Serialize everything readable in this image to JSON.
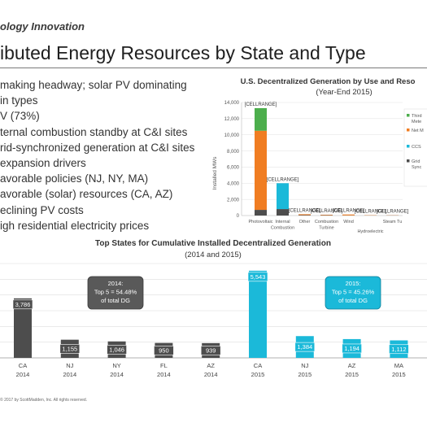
{
  "slide": {
    "kicker": "ology Innovation",
    "title": "ibuted Energy Resources by State and Type",
    "bullets": [
      "making headway; solar PV dominating",
      "in types",
      "V (73%)",
      "ternal combustion standby at C&I sites",
      "rid-synchronized generation at C&I sites",
      "expansion drivers",
      "avorable policies (NJ, NY, MA)",
      "avorable (solar) resources (CA, AZ)",
      "eclining PV costs",
      "igh residential electricity prices"
    ],
    "footer": "© 2017 by ScottMadden, Inc. All rights reserved."
  },
  "colors": {
    "gray_bar": "#4d4d4d",
    "cyan_bar": "#1bb9d9",
    "orange": "#f07d22",
    "green": "#4cae4c",
    "callout_gray": "#595959",
    "callout_cyan": "#1bb9d9"
  },
  "chart_data": [
    {
      "type": "bar",
      "title": "U.S. Decentralized Generation by Use and Reso",
      "subtitle": "(Year-End 2015)",
      "ylabel": "Installed MWs",
      "ylim": [
        0,
        14000
      ],
      "yticks": [
        "0",
        "2,000",
        "4,000",
        "6,000",
        "8,000",
        "10,000",
        "12,000",
        "14,000"
      ],
      "stacked": true,
      "categories": [
        "Photovoltaic",
        "Internal Combustion",
        "Other",
        "Combustion Turbine",
        "Wind",
        "Hydroelectric",
        "Steam Tu"
      ],
      "category_labels": [
        [
          "Photovoltaic"
        ],
        [
          "Internal",
          "Combustion"
        ],
        [
          "Other"
        ],
        [
          "Combustion",
          "Turbine"
        ],
        [
          "Wind"
        ],
        [
          "Hydroelectric"
        ],
        [
          "Steam Tu"
        ]
      ],
      "series": [
        {
          "key": "grid",
          "name": "Grid Sync",
          "color": "#4d4d4d",
          "values": [
            700,
            800,
            60,
            40,
            20,
            20,
            20
          ]
        },
        {
          "key": "ccs",
          "name": "CCS",
          "color": "#1bb9d9",
          "values": [
            0,
            3200,
            0,
            0,
            0,
            0,
            0
          ]
        },
        {
          "key": "net",
          "name": "Net M",
          "color": "#f07d22",
          "values": [
            9800,
            0,
            100,
            60,
            110,
            30,
            20
          ]
        },
        {
          "key": "third",
          "name": "Third Meter",
          "color": "#4cae4c",
          "values": [
            2800,
            0,
            0,
            0,
            0,
            0,
            0
          ]
        }
      ],
      "data_labels": [
        "[CELLRANGE]",
        "[CELLRANGE]",
        "[CELLRANGE]",
        "[CELLRANGE]",
        "[CELLRANGE]",
        "[CELLRANGE]",
        "[CELLRANGE]"
      ],
      "legend": [
        {
          "lines": [
            "Third",
            "Mete"
          ],
          "color": "#4cae4c"
        },
        {
          "lines": [
            "Net M"
          ],
          "color": "#f07d22"
        },
        {
          "lines": [
            "CCS"
          ],
          "color": "#1bb9d9"
        },
        {
          "lines": [
            "Grid",
            "Sync"
          ],
          "color": "#4d4d4d"
        }
      ],
      "legend_position": "right"
    },
    {
      "type": "bar",
      "title": "Top States for Cumulative Installed Decentralized Generation",
      "subtitle": "(2014 and 2015)",
      "categories": [
        [
          "CA",
          "2014"
        ],
        [
          "NJ",
          "2014"
        ],
        [
          "NY",
          "2014"
        ],
        [
          "FL",
          "2014"
        ],
        [
          "AZ",
          "2014"
        ],
        [
          "CA",
          "2015"
        ],
        [
          "NJ",
          "2015"
        ],
        [
          "AZ",
          "2015"
        ],
        [
          "MA",
          "2015"
        ]
      ],
      "values": [
        3786,
        1155,
        1046,
        950,
        939,
        5543,
        1384,
        1194,
        1112
      ],
      "labels": [
        "3,786",
        "1,155",
        "1,046",
        "950",
        "939",
        "5,543",
        "1,384",
        "1,194",
        "1,112"
      ],
      "year_colors": [
        "gray",
        "gray",
        "gray",
        "gray",
        "gray",
        "cyan",
        "cyan",
        "cyan",
        "cyan"
      ],
      "ylim": [
        0,
        6000
      ],
      "grid": true,
      "callouts": [
        {
          "lines": [
            "2014:",
            "Top 5 = 54.48%",
            "of total DG"
          ],
          "color": "gray"
        },
        {
          "lines": [
            "2015:",
            "Top 5 = 45.26%",
            "of total DG"
          ],
          "color": "cyan"
        }
      ]
    }
  ]
}
